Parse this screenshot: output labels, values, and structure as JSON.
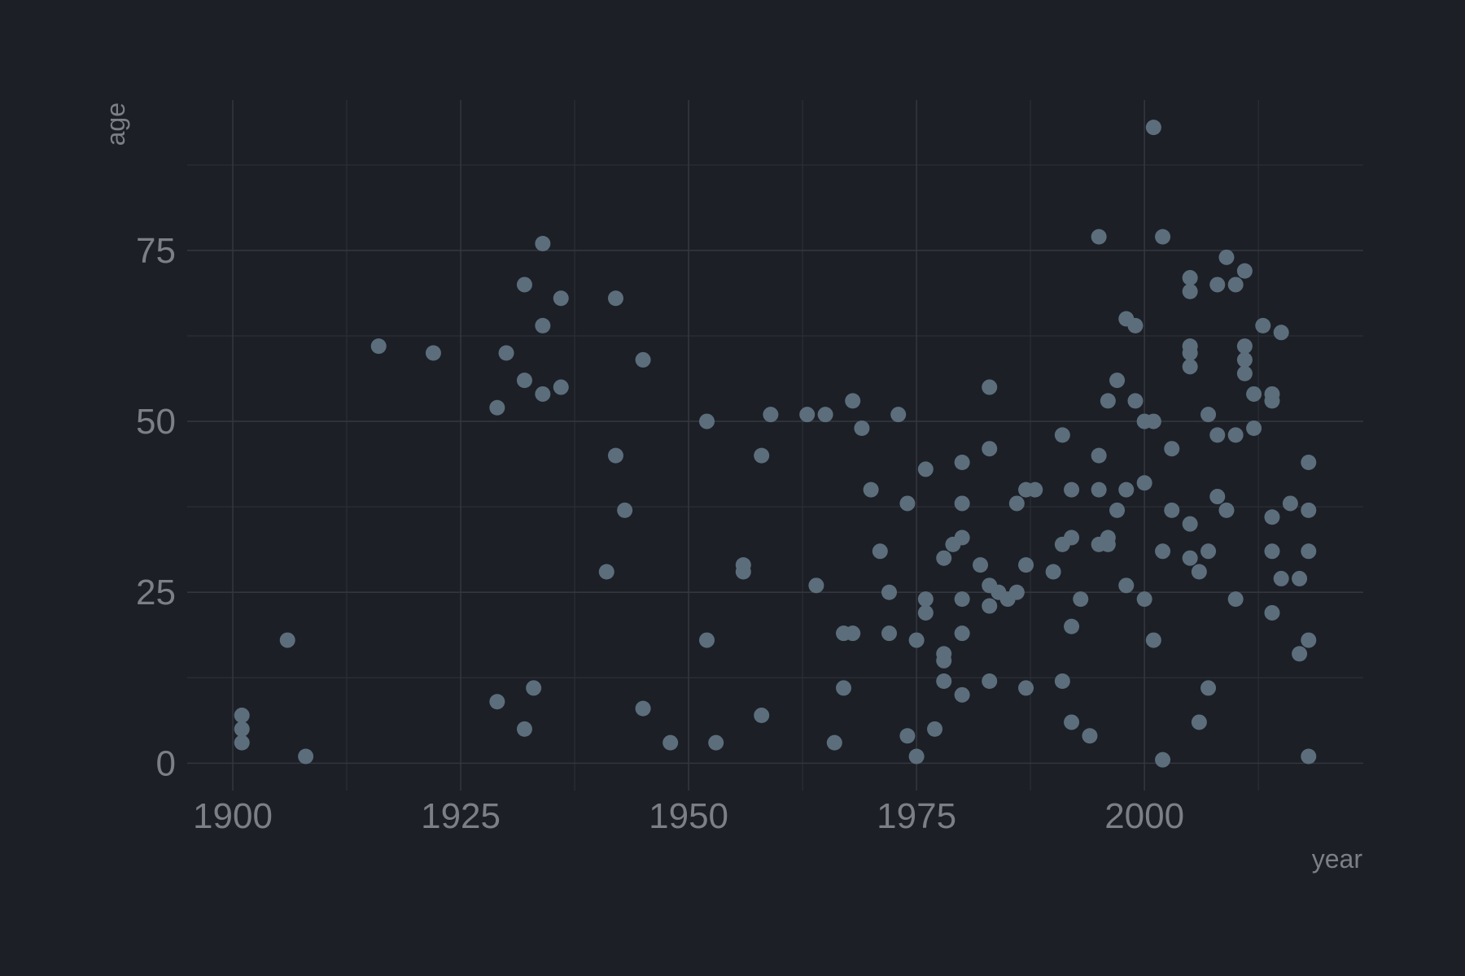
{
  "chart_data": {
    "type": "scatter",
    "title": "",
    "xlabel": "year",
    "ylabel": "age",
    "xlim": [
      1895,
      2024
    ],
    "ylim": [
      -4,
      97
    ],
    "x_ticks": [
      1900,
      1925,
      1950,
      1975,
      2000
    ],
    "y_ticks": [
      0,
      25,
      50,
      75
    ],
    "x_tick_labels": [
      "1900",
      "1925",
      "1950",
      "1975",
      "2000"
    ],
    "y_tick_labels": [
      "0",
      "25",
      "50",
      "75"
    ],
    "grid": true,
    "legend": "none",
    "point_color": "#5c6e7c",
    "background_color": "#1c1f26",
    "series": [
      {
        "points": [
          [
            1901,
            7
          ],
          [
            1901,
            5
          ],
          [
            1901,
            3
          ],
          [
            1906,
            18
          ],
          [
            1908,
            1
          ],
          [
            1916,
            61
          ],
          [
            1922,
            60
          ],
          [
            1929,
            52
          ],
          [
            1929,
            9
          ],
          [
            1930,
            60
          ],
          [
            1932,
            70
          ],
          [
            1932,
            56
          ],
          [
            1932,
            5
          ],
          [
            1933,
            11
          ],
          [
            1934,
            76
          ],
          [
            1934,
            64
          ],
          [
            1934,
            54
          ],
          [
            1936,
            68
          ],
          [
            1936,
            55
          ],
          [
            1941,
            28
          ],
          [
            1942,
            68
          ],
          [
            1942,
            45
          ],
          [
            1943,
            37
          ],
          [
            1945,
            59
          ],
          [
            1945,
            8
          ],
          [
            1948,
            3
          ],
          [
            1952,
            50
          ],
          [
            1952,
            18
          ],
          [
            1953,
            3
          ],
          [
            1956,
            29
          ],
          [
            1956,
            28
          ],
          [
            1958,
            45
          ],
          [
            1958,
            7
          ],
          [
            1959,
            51
          ],
          [
            1963,
            51
          ],
          [
            1964,
            26
          ],
          [
            1965,
            51
          ],
          [
            1966,
            3
          ],
          [
            1967,
            19
          ],
          [
            1967,
            11
          ],
          [
            1968,
            53
          ],
          [
            1968,
            19
          ],
          [
            1969,
            49
          ],
          [
            1970,
            40
          ],
          [
            1971,
            31
          ],
          [
            1972,
            25
          ],
          [
            1972,
            19
          ],
          [
            1973,
            51
          ],
          [
            1974,
            38
          ],
          [
            1974,
            4
          ],
          [
            1975,
            18
          ],
          [
            1975,
            1
          ],
          [
            1976,
            43
          ],
          [
            1976,
            24
          ],
          [
            1976,
            22
          ],
          [
            1977,
            5
          ],
          [
            1978,
            30
          ],
          [
            1978,
            16
          ],
          [
            1978,
            15
          ],
          [
            1978,
            12
          ],
          [
            1979,
            32
          ],
          [
            1980,
            44
          ],
          [
            1980,
            38
          ],
          [
            1980,
            33
          ],
          [
            1980,
            24
          ],
          [
            1980,
            19
          ],
          [
            1980,
            10
          ],
          [
            1982,
            29
          ],
          [
            1983,
            55
          ],
          [
            1983,
            46
          ],
          [
            1983,
            26
          ],
          [
            1983,
            23
          ],
          [
            1983,
            12
          ],
          [
            1984,
            25
          ],
          [
            1985,
            24
          ],
          [
            1986,
            38
          ],
          [
            1986,
            25
          ],
          [
            1987,
            40
          ],
          [
            1987,
            29
          ],
          [
            1987,
            11
          ],
          [
            1988,
            40
          ],
          [
            1990,
            28
          ],
          [
            1991,
            48
          ],
          [
            1991,
            32
          ],
          [
            1991,
            12
          ],
          [
            1992,
            40
          ],
          [
            1992,
            33
          ],
          [
            1992,
            20
          ],
          [
            1992,
            6
          ],
          [
            1993,
            24
          ],
          [
            1994,
            4
          ],
          [
            1995,
            77
          ],
          [
            1995,
            45
          ],
          [
            1995,
            40
          ],
          [
            1995,
            32
          ],
          [
            1996,
            53
          ],
          [
            1996,
            33
          ],
          [
            1996,
            32
          ],
          [
            1997,
            56
          ],
          [
            1997,
            37
          ],
          [
            1998,
            65
          ],
          [
            1998,
            40
          ],
          [
            1998,
            26
          ],
          [
            1999,
            64
          ],
          [
            1999,
            53
          ],
          [
            2000,
            50
          ],
          [
            2000,
            41
          ],
          [
            2000,
            24
          ],
          [
            2001,
            93
          ],
          [
            2001,
            50
          ],
          [
            2001,
            18
          ],
          [
            2002,
            77
          ],
          [
            2002,
            31
          ],
          [
            2002,
            0.5
          ],
          [
            2003,
            46
          ],
          [
            2003,
            37
          ],
          [
            2005,
            71
          ],
          [
            2005,
            69
          ],
          [
            2005,
            61
          ],
          [
            2005,
            60
          ],
          [
            2005,
            58
          ],
          [
            2005,
            35
          ],
          [
            2005,
            30
          ],
          [
            2006,
            28
          ],
          [
            2006,
            6
          ],
          [
            2007,
            51
          ],
          [
            2007,
            31
          ],
          [
            2007,
            11
          ],
          [
            2008,
            70
          ],
          [
            2008,
            48
          ],
          [
            2008,
            39
          ],
          [
            2009,
            74
          ],
          [
            2009,
            37
          ],
          [
            2010,
            70
          ],
          [
            2010,
            48
          ],
          [
            2010,
            24
          ],
          [
            2011,
            72
          ],
          [
            2011,
            61
          ],
          [
            2011,
            59
          ],
          [
            2011,
            57
          ],
          [
            2012,
            54
          ],
          [
            2012,
            49
          ],
          [
            2013,
            64
          ],
          [
            2014,
            54
          ],
          [
            2014,
            53
          ],
          [
            2014,
            36
          ],
          [
            2014,
            31
          ],
          [
            2014,
            22
          ],
          [
            2015,
            63
          ],
          [
            2015,
            27
          ],
          [
            2016,
            38
          ],
          [
            2017,
            27
          ],
          [
            2017,
            16
          ],
          [
            2018,
            44
          ],
          [
            2018,
            37
          ],
          [
            2018,
            31
          ],
          [
            2018,
            18
          ],
          [
            2018,
            1
          ]
        ]
      }
    ]
  }
}
